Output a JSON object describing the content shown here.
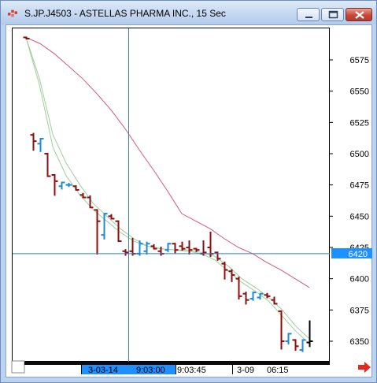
{
  "window": {
    "title": "S.JP.J4503 - ASTELLAS PHARMA INC., 15 Sec",
    "icon": "chart-app-icon",
    "controls": [
      "minimize-icon",
      "maximize-icon",
      "close-icon"
    ]
  },
  "chart": {
    "price_ticks": [
      "6575",
      "6550",
      "6525",
      "6500",
      "6475",
      "6450",
      "6425",
      "6400",
      "6375",
      "6350"
    ],
    "crosshair_price": "6420",
    "time_labels": {
      "date_start": "3-03-14",
      "time_start": "9:03:00",
      "time_mid": "9:03:45",
      "date_end": "3-09",
      "time_end": "06:15"
    },
    "colors": {
      "up_bar": "#1f8ad6",
      "down_bar": "#8b0f0f",
      "last_bar": "#000000",
      "ma_slow": "#d4587f",
      "ma_fast": "#9fcf9a",
      "crosshair": "#2f7fd0",
      "selection": "#1e90ff"
    }
  },
  "chart_data": {
    "type": "ohlc",
    "ylim": [
      6340,
      6595
    ],
    "yticks": [
      6575,
      6550,
      6525,
      6500,
      6475,
      6450,
      6425,
      6400,
      6375,
      6350
    ],
    "crosshair_y": 6420,
    "bars": [
      {
        "o": 6593,
        "h": 6593,
        "l": 6592,
        "c": 6592,
        "dir": "down"
      },
      {
        "o": 6515,
        "h": 6516,
        "l": 6503,
        "c": 6510,
        "dir": "down"
      },
      {
        "o": 6508,
        "h": 6512,
        "l": 6502,
        "c": 6512,
        "dir": "up"
      },
      {
        "o": 6500,
        "h": 6500,
        "l": 6482,
        "c": 6482,
        "dir": "down"
      },
      {
        "o": 6483,
        "h": 6483,
        "l": 6467,
        "c": 6478,
        "dir": "down"
      },
      {
        "o": 6474,
        "h": 6477,
        "l": 6472,
        "c": 6477,
        "dir": "up"
      },
      {
        "o": 6475,
        "h": 6476,
        "l": 6474,
        "c": 6475,
        "dir": "up"
      },
      {
        "o": 6474,
        "h": 6474,
        "l": 6471,
        "c": 6471,
        "dir": "down"
      },
      {
        "o": 6467,
        "h": 6468,
        "l": 6465,
        "c": 6465,
        "dir": "down"
      },
      {
        "o": 6465,
        "h": 6466,
        "l": 6457,
        "c": 6457,
        "dir": "down"
      },
      {
        "o": 6455,
        "h": 6455,
        "l": 6420,
        "c": 6446,
        "dir": "down"
      },
      {
        "o": 6435,
        "h": 6452,
        "l": 6432,
        "c": 6452,
        "dir": "up"
      },
      {
        "o": 6450,
        "h": 6451,
        "l": 6448,
        "c": 6448,
        "dir": "down"
      },
      {
        "o": 6446,
        "h": 6446,
        "l": 6430,
        "c": 6430,
        "dir": "down"
      },
      {
        "o": 6422,
        "h": 6423,
        "l": 6419,
        "c": 6421,
        "dir": "down"
      },
      {
        "o": 6422,
        "h": 6432,
        "l": 6419,
        "c": 6420,
        "dir": "down"
      },
      {
        "o": 6420,
        "h": 6430,
        "l": 6419,
        "c": 6428,
        "dir": "up"
      },
      {
        "o": 6422,
        "h": 6429,
        "l": 6420,
        "c": 6428,
        "dir": "up"
      },
      {
        "o": 6426,
        "h": 6427,
        "l": 6424,
        "c": 6424,
        "dir": "down"
      },
      {
        "o": 6422,
        "h": 6425,
        "l": 6419,
        "c": 6420,
        "dir": "down"
      },
      {
        "o": 6423,
        "h": 6428,
        "l": 6422,
        "c": 6428,
        "dir": "up"
      },
      {
        "o": 6428,
        "h": 6428,
        "l": 6421,
        "c": 6423,
        "dir": "down"
      },
      {
        "o": 6426,
        "h": 6429,
        "l": 6423,
        "c": 6424,
        "dir": "down"
      },
      {
        "o": 6425,
        "h": 6430,
        "l": 6420,
        "c": 6423,
        "dir": "down"
      },
      {
        "o": 6424,
        "h": 6424,
        "l": 6422,
        "c": 6423,
        "dir": "down"
      },
      {
        "o": 6420,
        "h": 6430,
        "l": 6419,
        "c": 6421,
        "dir": "down"
      },
      {
        "o": 6425,
        "h": 6437,
        "l": 6418,
        "c": 6420,
        "dir": "down"
      },
      {
        "o": 6421,
        "h": 6421,
        "l": 6415,
        "c": 6416,
        "dir": "down"
      },
      {
        "o": 6412,
        "h": 6413,
        "l": 6400,
        "c": 6407,
        "dir": "down"
      },
      {
        "o": 6406,
        "h": 6407,
        "l": 6398,
        "c": 6403,
        "dir": "down"
      },
      {
        "o": 6400,
        "h": 6401,
        "l": 6384,
        "c": 6386,
        "dir": "down"
      },
      {
        "o": 6388,
        "h": 6389,
        "l": 6380,
        "c": 6383,
        "dir": "down"
      },
      {
        "o": 6384,
        "h": 6389,
        "l": 6383,
        "c": 6389,
        "dir": "up"
      },
      {
        "o": 6385,
        "h": 6388,
        "l": 6384,
        "c": 6388,
        "dir": "up"
      },
      {
        "o": 6387,
        "h": 6388,
        "l": 6385,
        "c": 6386,
        "dir": "down"
      },
      {
        "o": 6383,
        "h": 6385,
        "l": 6380,
        "c": 6380,
        "dir": "down"
      },
      {
        "o": 6374,
        "h": 6374,
        "l": 6344,
        "c": 6350,
        "dir": "down"
      },
      {
        "o": 6350,
        "h": 6356,
        "l": 6348,
        "c": 6356,
        "dir": "up"
      },
      {
        "o": 6351,
        "h": 6351,
        "l": 6343,
        "c": 6346,
        "dir": "down"
      },
      {
        "o": 6343,
        "h": 6351,
        "l": 6342,
        "c": 6351,
        "dir": "up"
      },
      {
        "o": 6349,
        "h": 6366,
        "l": 6346,
        "c": 6350,
        "dir": "last"
      }
    ],
    "ma_slow": [
      6593,
      6588,
      6580,
      6570,
      6560,
      6548,
      6535,
      6520,
      6503,
      6487,
      6470,
      6452,
      6446,
      6440,
      6432,
      6425,
      6420,
      6413,
      6407,
      6400,
      6393
    ],
    "ma_fast_a": [
      6593,
      6560,
      6515,
      6492,
      6475,
      6460,
      6450,
      6440,
      6432,
      6426,
      6424,
      6423,
      6423,
      6421,
      6418,
      6410,
      6400,
      6393,
      6385,
      6375,
      6362,
      6352
    ],
    "ma_fast_b": [
      6593,
      6555,
      6505,
      6482,
      6467,
      6455,
      6446,
      6437,
      6430,
      6426,
      6424,
      6423,
      6422,
      6420,
      6415,
      6406,
      6397,
      6390,
      6382,
      6370,
      6358,
      6348
    ]
  }
}
